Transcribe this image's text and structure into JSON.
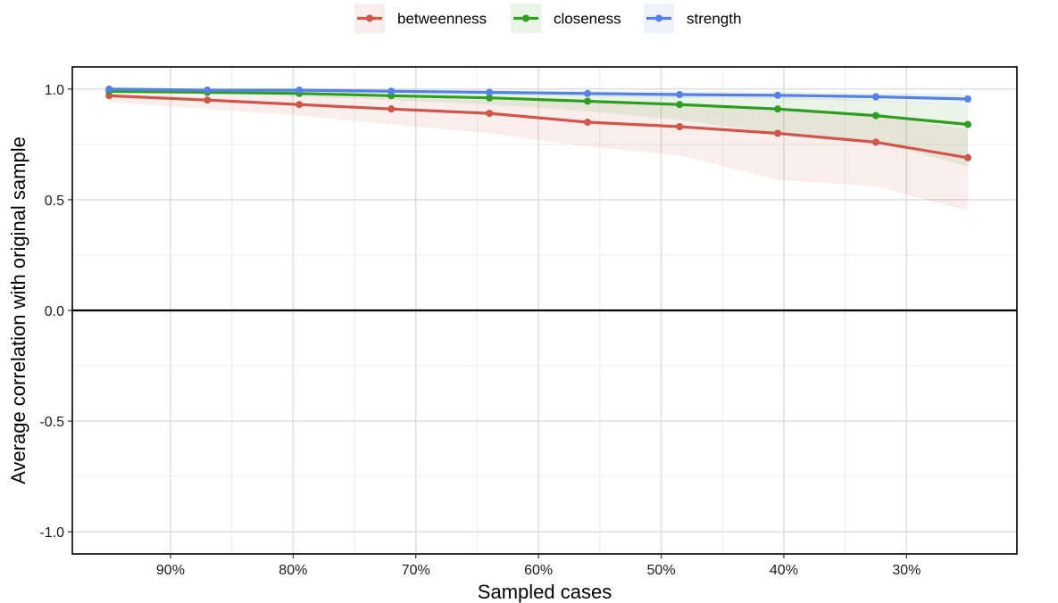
{
  "chart_data": {
    "type": "line",
    "xlabel": "Sampled cases",
    "ylabel": "Average correlation with original sample",
    "x_axis_reversed": true,
    "xlim": [
      0.98,
      0.21
    ],
    "ylim": [
      -1.1,
      1.1
    ],
    "x_ticks": [
      {
        "value": 0.9,
        "label": "90%"
      },
      {
        "value": 0.8,
        "label": "80%"
      },
      {
        "value": 0.7,
        "label": "70%"
      },
      {
        "value": 0.6,
        "label": "60%"
      },
      {
        "value": 0.5,
        "label": "50%"
      },
      {
        "value": 0.4,
        "label": "40%"
      },
      {
        "value": 0.3,
        "label": "30%"
      }
    ],
    "y_ticks": [
      {
        "value": 1.0,
        "label": "1.0"
      },
      {
        "value": 0.5,
        "label": "0.5"
      },
      {
        "value": 0.0,
        "label": "0.0"
      },
      {
        "value": -0.5,
        "label": "-0.5"
      },
      {
        "value": -1.0,
        "label": "-1.0"
      }
    ],
    "reference_line_y": 0.0,
    "grid": true,
    "legend_position": "top",
    "x": [
      0.95,
      0.87,
      0.795,
      0.72,
      0.64,
      0.56,
      0.485,
      0.405,
      0.325,
      0.25
    ],
    "series": [
      {
        "name": "betweenness",
        "color": "#d2554a",
        "values": [
          0.97,
          0.95,
          0.93,
          0.91,
          0.89,
          0.85,
          0.83,
          0.8,
          0.76,
          0.69
        ],
        "lower": [
          0.94,
          0.91,
          0.88,
          0.84,
          0.8,
          0.74,
          0.7,
          0.59,
          0.56,
          0.45
        ],
        "upper": [
          0.98,
          0.97,
          0.97,
          0.96,
          0.95,
          0.94,
          0.93,
          0.91,
          0.88,
          0.82
        ]
      },
      {
        "name": "closeness",
        "color": "#2e9e1f",
        "values": [
          0.99,
          0.985,
          0.98,
          0.97,
          0.96,
          0.945,
          0.93,
          0.91,
          0.88,
          0.84
        ],
        "lower": [
          0.98,
          0.975,
          0.965,
          0.95,
          0.93,
          0.9,
          0.86,
          0.8,
          0.76,
          0.65
        ],
        "upper": [
          0.995,
          0.99,
          0.99,
          0.985,
          0.98,
          0.975,
          0.97,
          0.965,
          0.95,
          0.93
        ]
      },
      {
        "name": "strength",
        "color": "#5481e6",
        "values": [
          1.0,
          0.995,
          0.995,
          0.99,
          0.985,
          0.98,
          0.975,
          0.972,
          0.965,
          0.955
        ],
        "lower": [
          0.995,
          0.99,
          0.985,
          0.98,
          0.975,
          0.965,
          0.96,
          0.955,
          0.945,
          0.93
        ],
        "upper": [
          1.0,
          1.0,
          1.0,
          0.998,
          0.995,
          0.992,
          0.99,
          0.988,
          0.984,
          0.98
        ]
      }
    ]
  }
}
